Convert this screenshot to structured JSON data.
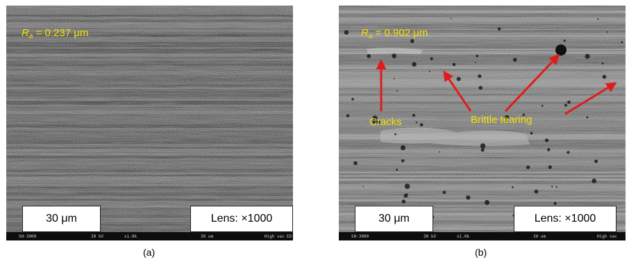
{
  "panels": [
    {
      "caption": "(a)",
      "roughness_symbol": "R",
      "roughness_sub": "a",
      "roughness_value": "= 0.237 μm",
      "scale_bar": "30 μm",
      "lens": "Lens: ×1000",
      "databar": {
        "instrument": "SH-3000",
        "voltage": "30 kV",
        "mag": "x1.0k",
        "scale": "30 um",
        "mode": "High vac",
        "tail": "ED"
      }
    },
    {
      "caption": "(b)",
      "roughness_symbol": "R",
      "roughness_sub": "a",
      "roughness_value": "= 0.902 μm",
      "scale_bar": "30 μm",
      "lens": "Lens: ×1000",
      "annotations": {
        "cracks": "Cracks",
        "brittle": "Brittle tearing"
      },
      "databar": {
        "instrument": "SH-3000",
        "voltage": "30 kV",
        "mag": "x1.0k",
        "scale": "30 um",
        "mode": "High vac"
      }
    }
  ],
  "colors": {
    "annotation_text": "#f4e100",
    "arrow": "#e11b1b",
    "sem_base": "#6f6f6f"
  }
}
